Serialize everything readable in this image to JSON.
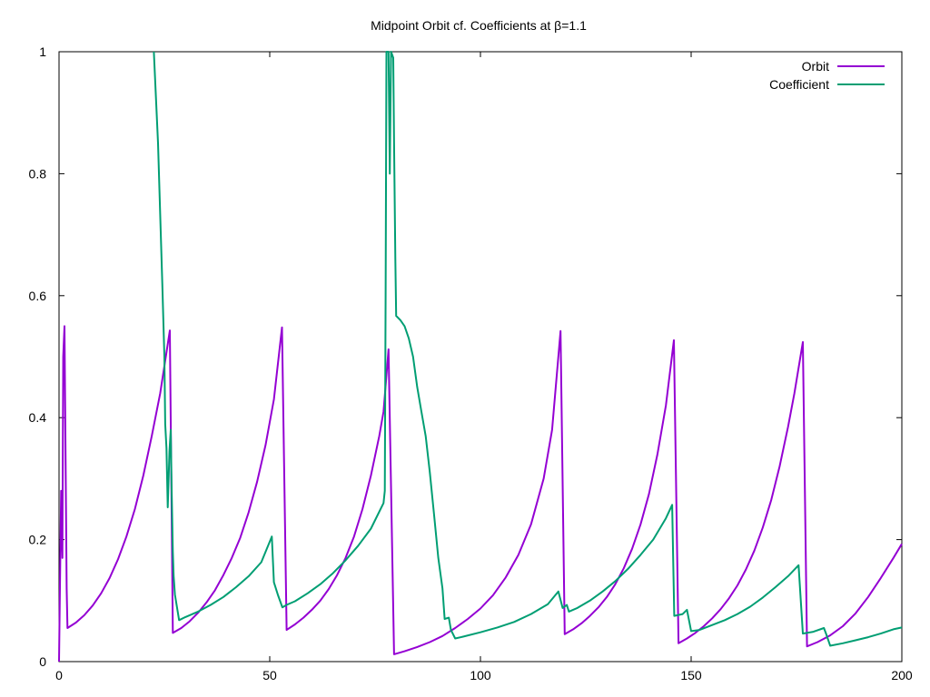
{
  "chart_data": {
    "type": "line",
    "title": "Midpoint Orbit cf. Coefficients at β=1.1",
    "xlabel": "",
    "ylabel": "",
    "xlim": [
      0,
      200
    ],
    "ylim": [
      0,
      1
    ],
    "x_ticks": [
      "0",
      "50",
      "100",
      "150",
      "200"
    ],
    "y_ticks": [
      "0",
      "0.2",
      "0.4",
      "0.6",
      "0.8",
      "1"
    ],
    "grid": false,
    "legend_position": "top-right",
    "series": [
      {
        "name": "Orbit",
        "color": "#9400d3",
        "points": [
          [
            0,
            0
          ],
          [
            0.5,
            0.28
          ],
          [
            0.8,
            0.17
          ],
          [
            1.0,
            0.5
          ],
          [
            1.3,
            0.55
          ],
          [
            1.8,
            0.12
          ],
          [
            2,
            0.055
          ],
          [
            4,
            0.064
          ],
          [
            6,
            0.076
          ],
          [
            8,
            0.092
          ],
          [
            10,
            0.112
          ],
          [
            12,
            0.137
          ],
          [
            14,
            0.168
          ],
          [
            16,
            0.205
          ],
          [
            18,
            0.25
          ],
          [
            20,
            0.305
          ],
          [
            22,
            0.37
          ],
          [
            24,
            0.44
          ],
          [
            26.3,
            0.543
          ],
          [
            27,
            0.047
          ],
          [
            29,
            0.055
          ],
          [
            31,
            0.066
          ],
          [
            33,
            0.08
          ],
          [
            35,
            0.097
          ],
          [
            37,
            0.117
          ],
          [
            39,
            0.142
          ],
          [
            41,
            0.17
          ],
          [
            43,
            0.203
          ],
          [
            45,
            0.245
          ],
          [
            47,
            0.295
          ],
          [
            49,
            0.355
          ],
          [
            51,
            0.43
          ],
          [
            52.9,
            0.548
          ],
          [
            54,
            0.052
          ],
          [
            56,
            0.061
          ],
          [
            58,
            0.072
          ],
          [
            60,
            0.085
          ],
          [
            62,
            0.1
          ],
          [
            64,
            0.119
          ],
          [
            66,
            0.142
          ],
          [
            68,
            0.17
          ],
          [
            70,
            0.205
          ],
          [
            72,
            0.25
          ],
          [
            74,
            0.305
          ],
          [
            76,
            0.37
          ],
          [
            77,
            0.41
          ],
          [
            78.2,
            0.512
          ],
          [
            79.5,
            0.012
          ],
          [
            82,
            0.017
          ],
          [
            85,
            0.024
          ],
          [
            88,
            0.032
          ],
          [
            91,
            0.042
          ],
          [
            94,
            0.055
          ],
          [
            97,
            0.07
          ],
          [
            100,
            0.087
          ],
          [
            103,
            0.109
          ],
          [
            106,
            0.138
          ],
          [
            109,
            0.175
          ],
          [
            112,
            0.225
          ],
          [
            115,
            0.3
          ],
          [
            117,
            0.38
          ],
          [
            119,
            0.542
          ],
          [
            120,
            0.045
          ],
          [
            122,
            0.053
          ],
          [
            124,
            0.063
          ],
          [
            126,
            0.075
          ],
          [
            128,
            0.089
          ],
          [
            130,
            0.106
          ],
          [
            132,
            0.127
          ],
          [
            134,
            0.153
          ],
          [
            136,
            0.185
          ],
          [
            138,
            0.225
          ],
          [
            140,
            0.275
          ],
          [
            142,
            0.34
          ],
          [
            144,
            0.42
          ],
          [
            145.9,
            0.527
          ],
          [
            147,
            0.03
          ],
          [
            149,
            0.038
          ],
          [
            151,
            0.047
          ],
          [
            153,
            0.058
          ],
          [
            155,
            0.071
          ],
          [
            157,
            0.086
          ],
          [
            159,
            0.104
          ],
          [
            161,
            0.125
          ],
          [
            163,
            0.151
          ],
          [
            165,
            0.182
          ],
          [
            167,
            0.22
          ],
          [
            169,
            0.265
          ],
          [
            171,
            0.32
          ],
          [
            173,
            0.385
          ],
          [
            174.5,
            0.44
          ],
          [
            176.5,
            0.524
          ],
          [
            177.5,
            0.025
          ],
          [
            180,
            0.032
          ],
          [
            183,
            0.043
          ],
          [
            186,
            0.058
          ],
          [
            189,
            0.079
          ],
          [
            192,
            0.106
          ],
          [
            195,
            0.137
          ],
          [
            198,
            0.17
          ],
          [
            200,
            0.193
          ]
        ]
      },
      {
        "name": "Coefficient",
        "color": "#009e73",
        "points": [
          [
            22.5,
            1.0
          ],
          [
            23.5,
            0.85
          ],
          [
            24.5,
            0.62
          ],
          [
            25,
            0.5
          ],
          [
            25.2,
            0.39
          ],
          [
            25.5,
            0.35
          ],
          [
            25.8,
            0.253
          ],
          [
            26.2,
            0.345
          ],
          [
            26.5,
            0.38
          ],
          [
            26.7,
            0.29
          ],
          [
            27,
            0.18
          ],
          [
            27.2,
            0.14
          ],
          [
            27.5,
            0.11
          ],
          [
            28.5,
            0.068
          ],
          [
            30,
            0.073
          ],
          [
            33,
            0.082
          ],
          [
            36,
            0.093
          ],
          [
            39,
            0.106
          ],
          [
            42,
            0.122
          ],
          [
            45,
            0.14
          ],
          [
            48,
            0.163
          ],
          [
            50.5,
            0.205
          ],
          [
            51,
            0.13
          ],
          [
            52,
            0.108
          ],
          [
            53,
            0.089
          ],
          [
            54,
            0.093
          ],
          [
            56,
            0.099
          ],
          [
            59,
            0.112
          ],
          [
            62,
            0.127
          ],
          [
            65,
            0.145
          ],
          [
            68,
            0.166
          ],
          [
            71,
            0.19
          ],
          [
            74,
            0.218
          ],
          [
            77,
            0.26
          ],
          [
            77.3,
            0.28
          ],
          [
            77.5,
            0.6
          ],
          [
            77.7,
            1.0
          ],
          [
            78.2,
            1.0
          ],
          [
            78.5,
            0.8
          ],
          [
            78.8,
            1.0
          ],
          [
            79.3,
            0.99
          ],
          [
            79.5,
            0.85
          ],
          [
            79.8,
            0.66
          ],
          [
            80,
            0.567
          ],
          [
            81,
            0.56
          ],
          [
            82,
            0.55
          ],
          [
            83,
            0.53
          ],
          [
            84,
            0.5
          ],
          [
            85,
            0.45
          ],
          [
            86,
            0.41
          ],
          [
            87,
            0.37
          ],
          [
            88,
            0.31
          ],
          [
            89,
            0.24
          ],
          [
            90,
            0.17
          ],
          [
            91,
            0.12
          ],
          [
            91.5,
            0.07
          ],
          [
            92.5,
            0.072
          ],
          [
            93,
            0.052
          ],
          [
            94,
            0.038
          ],
          [
            96,
            0.041
          ],
          [
            100,
            0.048
          ],
          [
            104,
            0.056
          ],
          [
            108,
            0.065
          ],
          [
            112,
            0.078
          ],
          [
            116,
            0.094
          ],
          [
            118.5,
            0.115
          ],
          [
            119.5,
            0.088
          ],
          [
            120.5,
            0.093
          ],
          [
            121,
            0.082
          ],
          [
            123,
            0.088
          ],
          [
            126,
            0.1
          ],
          [
            129,
            0.115
          ],
          [
            132,
            0.132
          ],
          [
            135,
            0.152
          ],
          [
            138,
            0.175
          ],
          [
            141,
            0.2
          ],
          [
            144,
            0.235
          ],
          [
            145.5,
            0.257
          ],
          [
            146,
            0.075
          ],
          [
            148,
            0.078
          ],
          [
            149,
            0.085
          ],
          [
            150,
            0.05
          ],
          [
            152,
            0.052
          ],
          [
            155,
            0.06
          ],
          [
            158,
            0.068
          ],
          [
            161,
            0.078
          ],
          [
            164,
            0.09
          ],
          [
            167,
            0.105
          ],
          [
            170,
            0.122
          ],
          [
            173,
            0.14
          ],
          [
            175.5,
            0.158
          ],
          [
            176.5,
            0.046
          ],
          [
            179,
            0.049
          ],
          [
            181.5,
            0.055
          ],
          [
            182,
            0.046
          ],
          [
            183,
            0.026
          ],
          [
            186,
            0.03
          ],
          [
            189,
            0.035
          ],
          [
            192,
            0.04
          ],
          [
            195,
            0.046
          ],
          [
            198,
            0.053
          ],
          [
            200,
            0.056
          ]
        ]
      }
    ]
  }
}
